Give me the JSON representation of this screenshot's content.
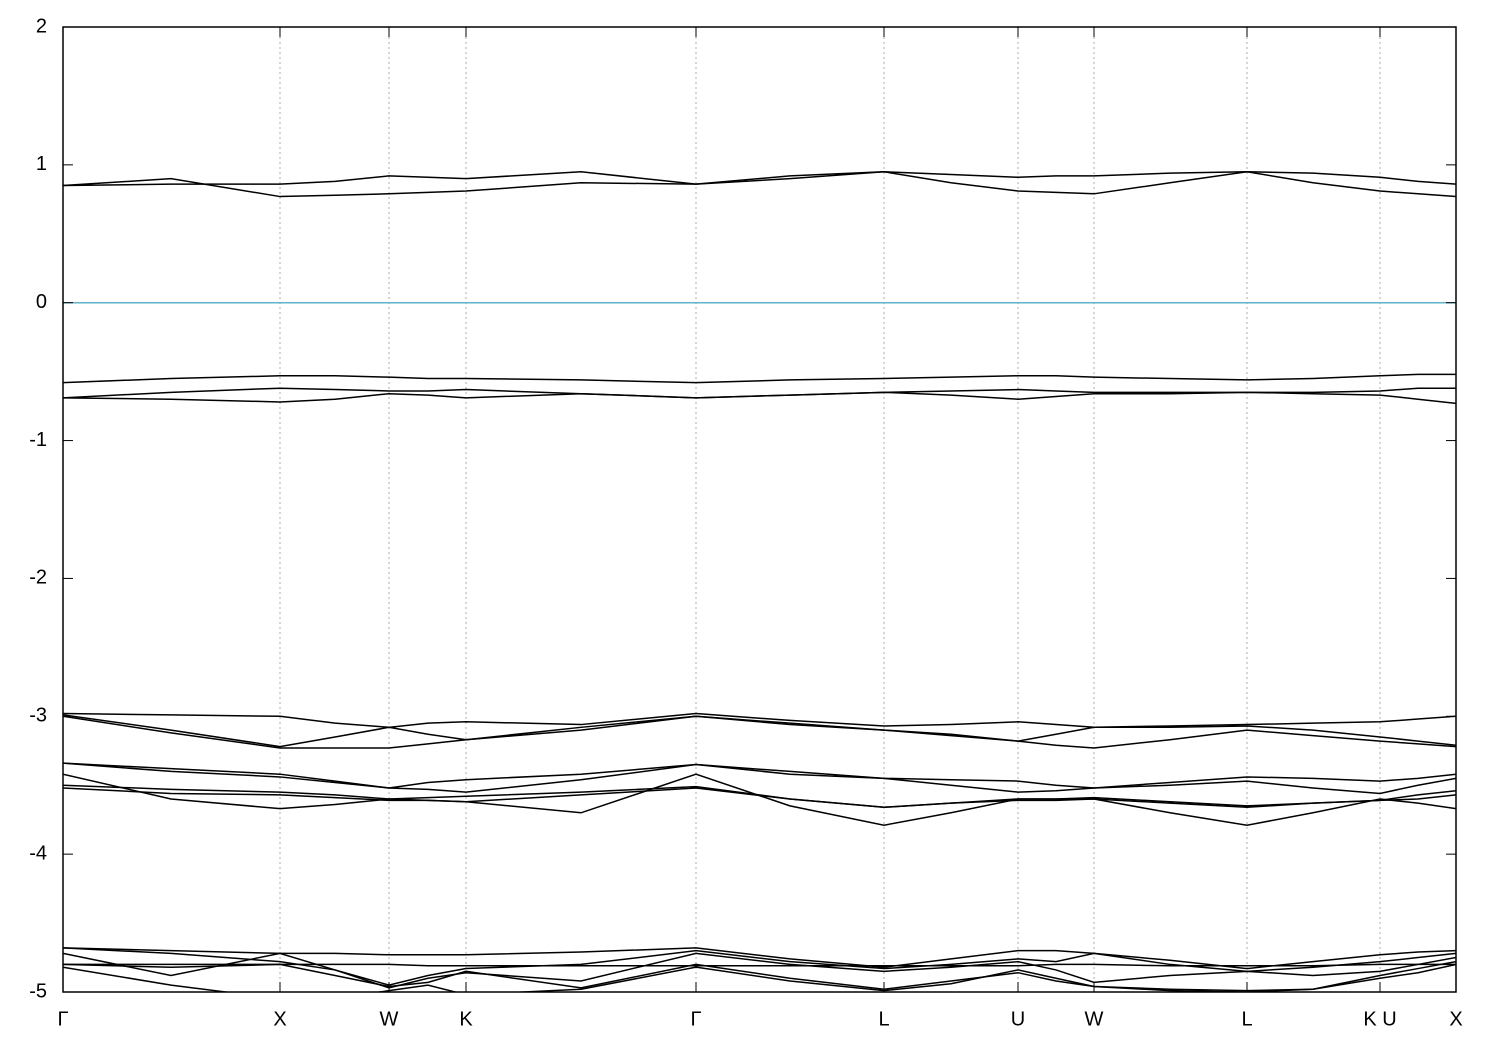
{
  "chart_data": {
    "type": "line",
    "x": [
      0,
      1.08,
      2.17,
      2.72,
      3.26,
      3.65,
      4.03,
      5.18,
      6.33,
      7.27,
      8.21,
      8.88,
      9.55,
      9.93,
      10.31,
      11.07,
      11.84,
      12.5,
      13.17,
      13.55,
      13.93
    ],
    "xlim": [
      0,
      13.93
    ],
    "xticks": [
      {
        "value": 0,
        "label": "Γ"
      },
      {
        "value": 2.17,
        "label": "X"
      },
      {
        "value": 3.26,
        "label": "W"
      },
      {
        "value": 4.03,
        "label": "K"
      },
      {
        "value": 6.33,
        "label": "Γ"
      },
      {
        "value": 8.21,
        "label": "L"
      },
      {
        "value": 9.55,
        "label": "U"
      },
      {
        "value": 10.31,
        "label": "W"
      },
      {
        "value": 11.84,
        "label": "L"
      },
      {
        "value": 13.17,
        "label": "K U"
      },
      {
        "value": 13.93,
        "label": "X"
      }
    ],
    "ylim": [
      -5,
      2
    ],
    "yticks": [
      -5,
      -4,
      -3,
      -2,
      -1,
      0,
      1,
      2
    ],
    "grid": true,
    "line_color": "#000000",
    "fermi_level": 0,
    "fermi_color": "#5fb4c8",
    "series": [
      {
        "values": [
          0.85,
          0.9,
          0.77,
          0.78,
          0.79,
          0.8,
          0.81,
          0.87,
          0.86,
          0.9,
          0.95,
          0.87,
          0.81,
          0.8,
          0.79,
          0.87,
          0.95,
          0.87,
          0.81,
          0.79,
          0.77
        ]
      },
      {
        "values": [
          0.85,
          0.86,
          0.86,
          0.88,
          0.92,
          0.91,
          0.9,
          0.95,
          0.86,
          0.92,
          0.95,
          0.93,
          0.91,
          0.92,
          0.92,
          0.94,
          0.95,
          0.94,
          0.91,
          0.88,
          0.86
        ]
      },
      {
        "values": [
          -0.58,
          -0.55,
          -0.53,
          -0.53,
          -0.54,
          -0.55,
          -0.55,
          -0.56,
          -0.58,
          -0.56,
          -0.55,
          -0.54,
          -0.53,
          -0.53,
          -0.54,
          -0.55,
          -0.56,
          -0.55,
          -0.53,
          -0.52,
          -0.52
        ]
      },
      {
        "values": [
          -0.69,
          -0.65,
          -0.62,
          -0.63,
          -0.64,
          -0.64,
          -0.63,
          -0.66,
          -0.69,
          -0.67,
          -0.65,
          -0.64,
          -0.63,
          -0.64,
          -0.65,
          -0.65,
          -0.65,
          -0.65,
          -0.64,
          -0.62,
          -0.62
        ]
      },
      {
        "values": [
          -0.69,
          -0.7,
          -0.72,
          -0.7,
          -0.66,
          -0.67,
          -0.69,
          -0.66,
          -0.69,
          -0.67,
          -0.65,
          -0.67,
          -0.7,
          -0.68,
          -0.66,
          -0.66,
          -0.65,
          -0.66,
          -0.67,
          -0.7,
          -0.73
        ]
      },
      {
        "values": [
          -2.98,
          -2.99,
          -3.0,
          -3.05,
          -3.08,
          -3.05,
          -3.04,
          -3.06,
          -2.98,
          -3.03,
          -3.07,
          -3.06,
          -3.04,
          -3.06,
          -3.08,
          -3.07,
          -3.06,
          -3.05,
          -3.04,
          -3.02,
          -3.0
        ]
      },
      {
        "values": [
          -2.99,
          -3.1,
          -3.22,
          -3.15,
          -3.08,
          -3.13,
          -3.17,
          -3.08,
          -3.0,
          -3.05,
          -3.1,
          -3.14,
          -3.18,
          -3.13,
          -3.08,
          -3.08,
          -3.07,
          -3.1,
          -3.15,
          -3.18,
          -3.21
        ]
      },
      {
        "values": [
          -3.0,
          -3.12,
          -3.23,
          -3.23,
          -3.23,
          -3.2,
          -3.17,
          -3.1,
          -3.0,
          -3.06,
          -3.1,
          -3.13,
          -3.18,
          -3.21,
          -3.23,
          -3.17,
          -3.1,
          -3.14,
          -3.18,
          -3.2,
          -3.22
        ]
      },
      {
        "values": [
          -3.34,
          -3.38,
          -3.42,
          -3.47,
          -3.52,
          -3.48,
          -3.46,
          -3.42,
          -3.35,
          -3.4,
          -3.45,
          -3.46,
          -3.47,
          -3.5,
          -3.52,
          -3.48,
          -3.44,
          -3.45,
          -3.47,
          -3.45,
          -3.42
        ]
      },
      {
        "values": [
          -3.34,
          -3.4,
          -3.44,
          -3.48,
          -3.52,
          -3.53,
          -3.55,
          -3.46,
          -3.35,
          -3.42,
          -3.45,
          -3.5,
          -3.55,
          -3.54,
          -3.52,
          -3.5,
          -3.47,
          -3.52,
          -3.56,
          -3.5,
          -3.45
        ]
      },
      {
        "values": [
          -3.42,
          -3.6,
          -3.67,
          -3.64,
          -3.6,
          -3.61,
          -3.62,
          -3.7,
          -3.42,
          -3.65,
          -3.79,
          -3.7,
          -3.6,
          -3.6,
          -3.6,
          -3.7,
          -3.79,
          -3.7,
          -3.6,
          -3.63,
          -3.67
        ]
      },
      {
        "values": [
          -3.5,
          -3.53,
          -3.55,
          -3.57,
          -3.6,
          -3.59,
          -3.58,
          -3.55,
          -3.51,
          -3.6,
          -3.66,
          -3.63,
          -3.6,
          -3.6,
          -3.59,
          -3.62,
          -3.65,
          -3.63,
          -3.61,
          -3.57,
          -3.54
        ]
      },
      {
        "values": [
          -3.52,
          -3.56,
          -3.57,
          -3.59,
          -3.61,
          -3.61,
          -3.62,
          -3.57,
          -3.52,
          -3.6,
          -3.66,
          -3.63,
          -3.61,
          -3.61,
          -3.6,
          -3.63,
          -3.66,
          -3.63,
          -3.61,
          -3.6,
          -3.57
        ]
      },
      {
        "values": [
          -4.68,
          -4.7,
          -4.72,
          -4.72,
          -4.73,
          -4.73,
          -4.73,
          -4.71,
          -4.68,
          -4.76,
          -4.82,
          -4.76,
          -4.7,
          -4.7,
          -4.72,
          -4.77,
          -4.83,
          -4.78,
          -4.73,
          -4.71,
          -4.7
        ]
      },
      {
        "values": [
          -4.68,
          -4.72,
          -4.78,
          -4.84,
          -4.95,
          -4.88,
          -4.83,
          -4.8,
          -4.7,
          -4.78,
          -4.83,
          -4.8,
          -4.76,
          -4.78,
          -4.72,
          -4.8,
          -4.85,
          -4.82,
          -4.78,
          -4.75,
          -4.72
        ]
      },
      {
        "values": [
          -4.72,
          -4.88,
          -4.72,
          -4.84,
          -4.97,
          -4.9,
          -4.86,
          -4.92,
          -4.72,
          -4.8,
          -4.85,
          -4.82,
          -4.78,
          -4.84,
          -4.93,
          -4.88,
          -4.85,
          -4.88,
          -4.85,
          -4.8,
          -4.75
        ]
      },
      {
        "values": [
          -4.8,
          -4.82,
          -4.8,
          -4.88,
          -4.96,
          -4.93,
          -4.85,
          -4.97,
          -4.8,
          -4.9,
          -4.98,
          -4.92,
          -4.86,
          -4.92,
          -4.96,
          -4.98,
          -4.99,
          -4.98,
          -4.88,
          -4.83,
          -4.78
        ]
      },
      {
        "values": [
          -4.82,
          -4.95,
          -5.05,
          -5.05,
          -4.99,
          -4.95,
          -5.02,
          -4.98,
          -4.82,
          -4.92,
          -4.99,
          -4.94,
          -4.84,
          -4.9,
          -4.96,
          -4.99,
          -5.0,
          -4.98,
          -4.9,
          -4.86,
          -4.8
        ]
      },
      {
        "values": [
          -4.8,
          -4.8,
          -4.8,
          -4.8,
          -4.8,
          -4.81,
          -4.81,
          -4.81,
          -4.81,
          -4.81,
          -4.81,
          -4.81,
          -4.81,
          -4.8,
          -4.8,
          -4.81,
          -4.81,
          -4.81,
          -4.8,
          -4.8,
          -4.8
        ]
      }
    ]
  }
}
